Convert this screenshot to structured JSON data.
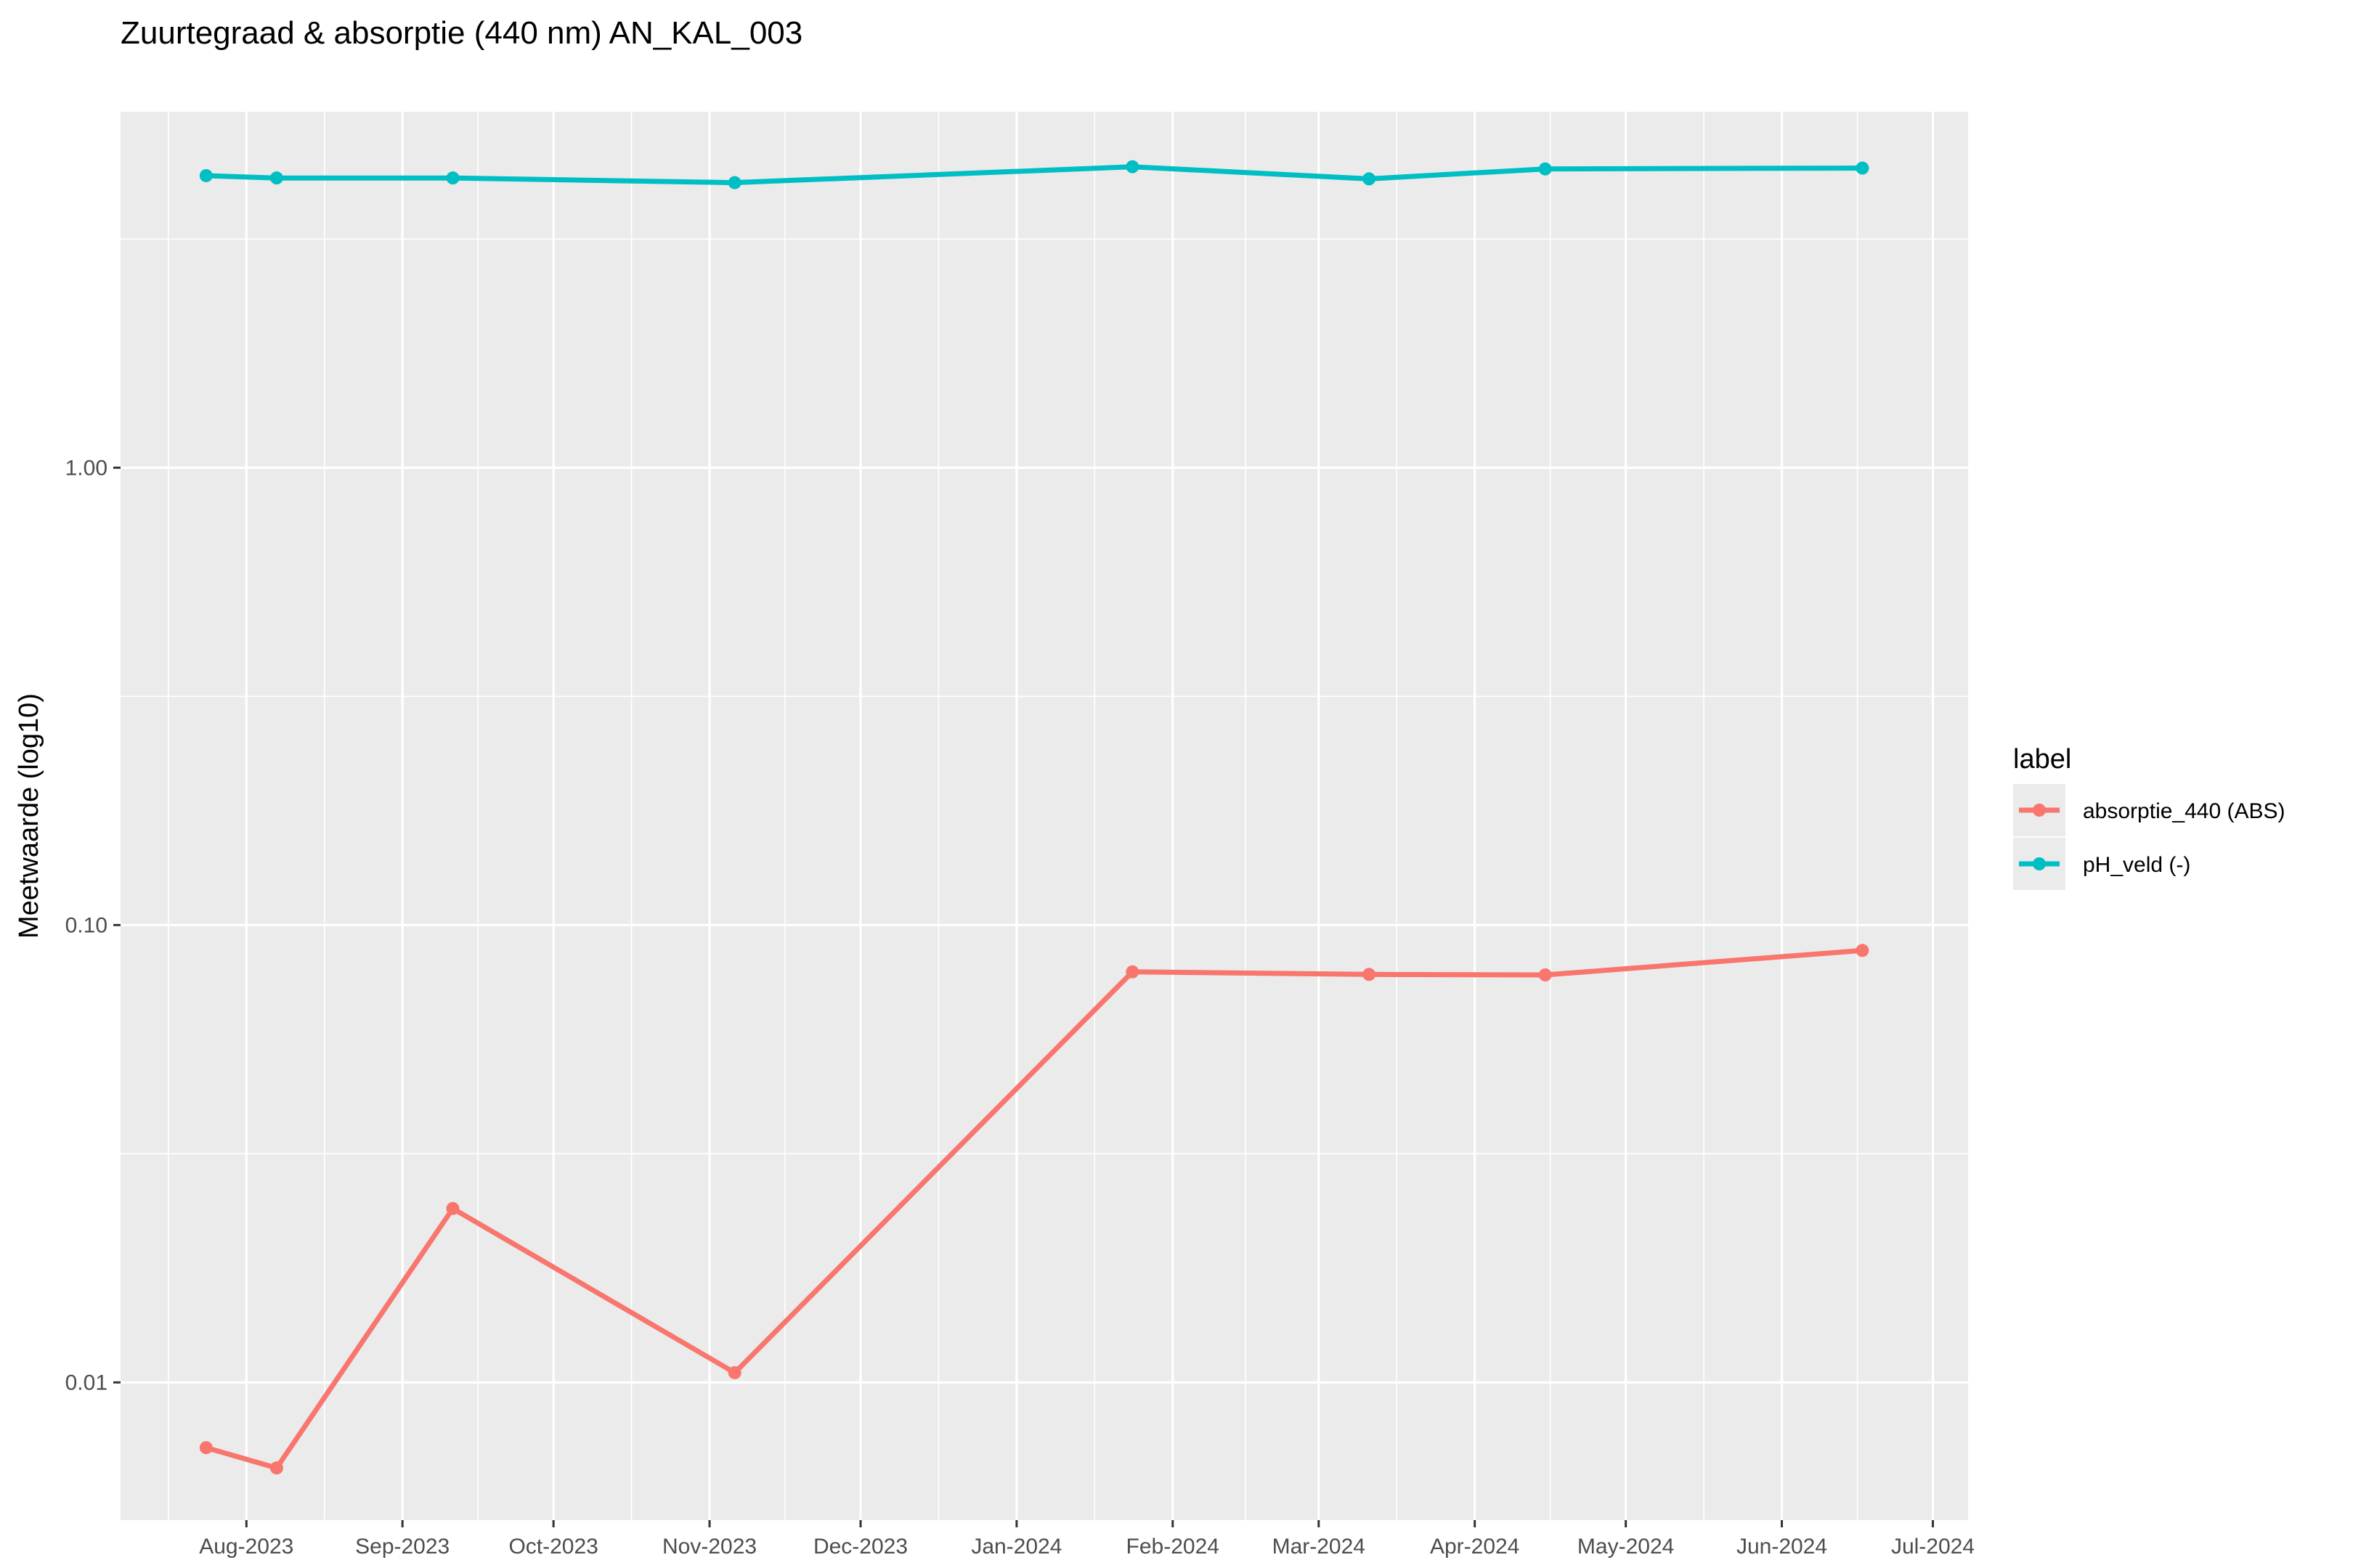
{
  "chart_data": {
    "type": "line",
    "title": "Zuurtegraad & absorptie (440 nm) AN_KAL_003",
    "xlabel": "",
    "ylabel": "Meetwaarde (log10)",
    "y_scale": "log10",
    "ylim": [
      0.005,
      6.0
    ],
    "y_ticks": [
      {
        "value": 0.01,
        "label": "0.01"
      },
      {
        "value": 0.1,
        "label": "0.10"
      },
      {
        "value": 1,
        "label": "1.00"
      }
    ],
    "xlim": [
      "2023-07-07",
      "2024-07-08"
    ],
    "x_ticks": [
      {
        "date": "2023-08-01",
        "label": "Aug-2023"
      },
      {
        "date": "2023-09-01",
        "label": "Sep-2023"
      },
      {
        "date": "2023-10-01",
        "label": "Oct-2023"
      },
      {
        "date": "2023-11-01",
        "label": "Nov-2023"
      },
      {
        "date": "2023-12-01",
        "label": "Dec-2023"
      },
      {
        "date": "2024-01-01",
        "label": "Jan-2024"
      },
      {
        "date": "2024-02-01",
        "label": "Feb-2024"
      },
      {
        "date": "2024-03-01",
        "label": "Mar-2024"
      },
      {
        "date": "2024-04-01",
        "label": "Apr-2024"
      },
      {
        "date": "2024-05-01",
        "label": "May-2024"
      },
      {
        "date": "2024-06-01",
        "label": "Jun-2024"
      },
      {
        "date": "2024-07-01",
        "label": "Jul-2024"
      }
    ],
    "grid": true,
    "legend": {
      "title": "label",
      "position": "right"
    },
    "series": [
      {
        "name": "absorptie_440 (ABS)",
        "color": "#F8766D",
        "points": [
          {
            "x": "2023-07-24",
            "y": 0.0072
          },
          {
            "x": "2023-08-07",
            "y": 0.0065
          },
          {
            "x": "2023-09-11",
            "y": 0.024
          },
          {
            "x": "2023-11-06",
            "y": 0.0105
          },
          {
            "x": "2024-01-24",
            "y": 0.079
          },
          {
            "x": "2024-03-11",
            "y": 0.078
          },
          {
            "x": "2024-04-15",
            "y": 0.0778
          },
          {
            "x": "2024-06-17",
            "y": 0.088
          }
        ]
      },
      {
        "name": "pH_veld (-)",
        "color": "#00BFC4",
        "points": [
          {
            "x": "2023-07-24",
            "y": 4.35
          },
          {
            "x": "2023-08-07",
            "y": 4.3
          },
          {
            "x": "2023-09-11",
            "y": 4.3
          },
          {
            "x": "2023-11-06",
            "y": 4.2
          },
          {
            "x": "2024-01-24",
            "y": 4.55
          },
          {
            "x": "2024-03-11",
            "y": 4.28
          },
          {
            "x": "2024-04-15",
            "y": 4.5
          },
          {
            "x": "2024-06-17",
            "y": 4.52
          }
        ]
      }
    ]
  }
}
